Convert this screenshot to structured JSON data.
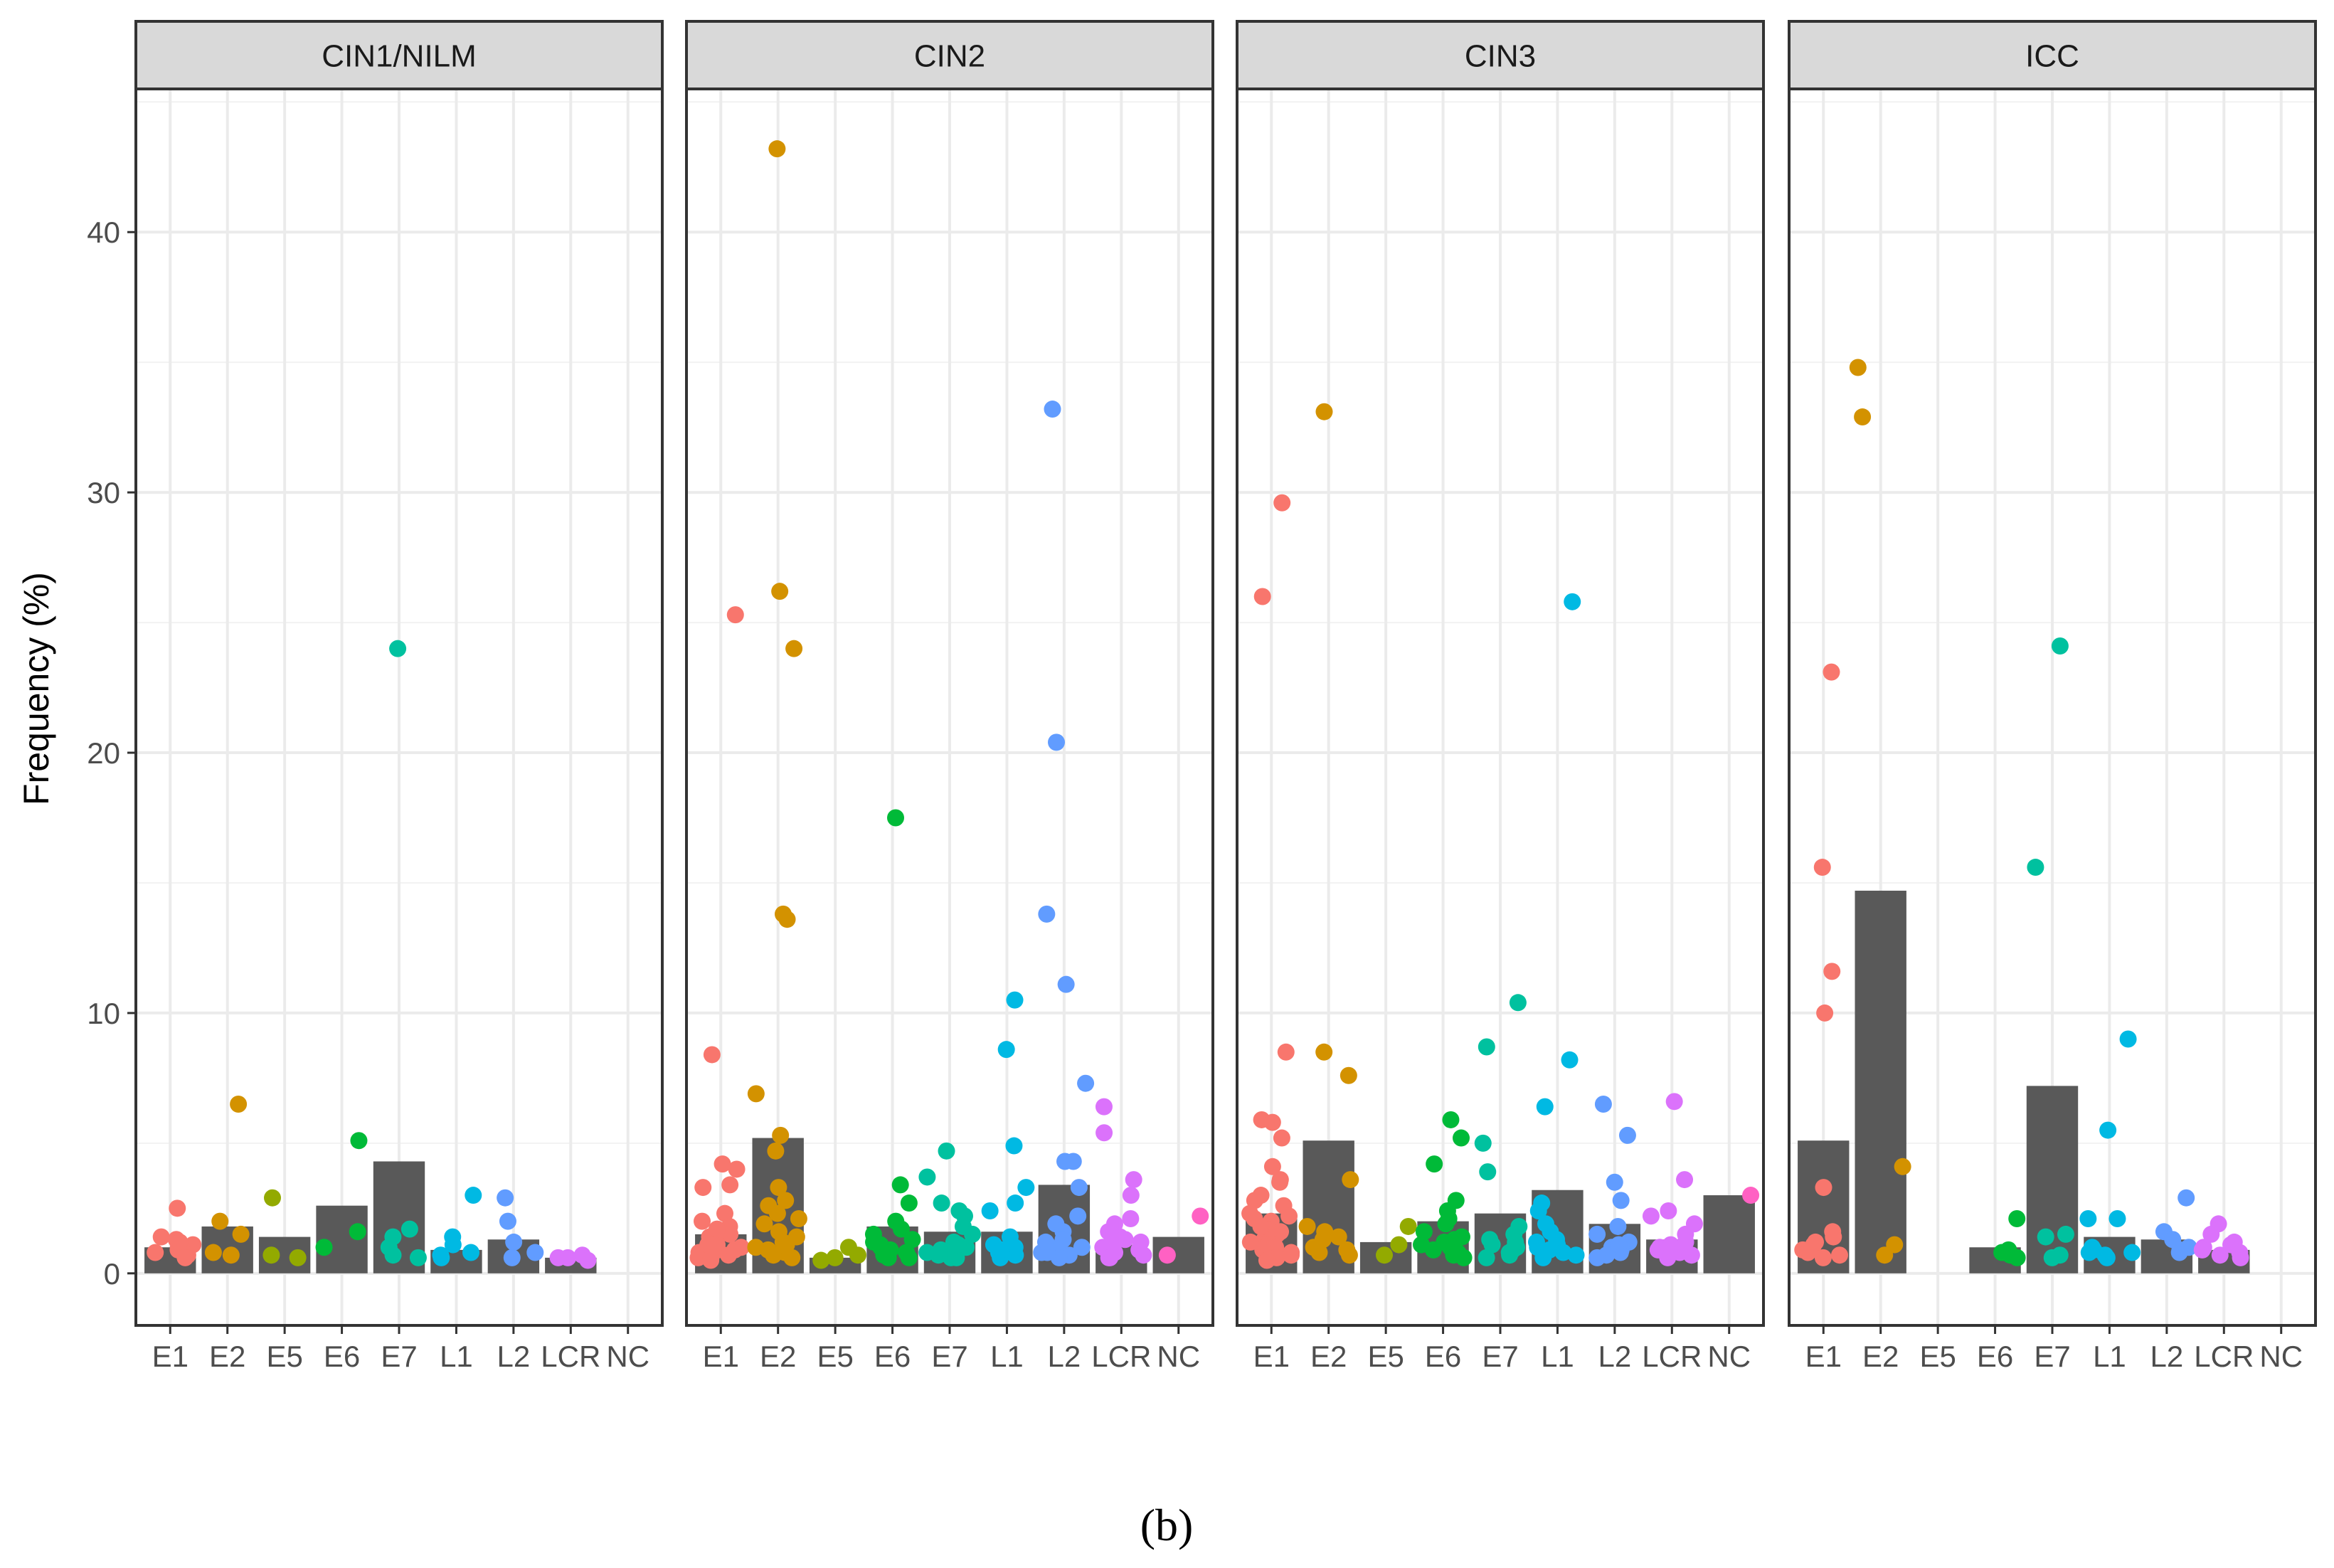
{
  "caption": "(b)",
  "chart_data": {
    "type": "bar",
    "ylabel": "Frequency (%)",
    "xlabel": "",
    "ylim": [
      -2,
      45.5
    ],
    "y_ticks": [
      0,
      10,
      20,
      30,
      40
    ],
    "categories": [
      "E1",
      "E2",
      "E5",
      "E6",
      "E7",
      "L1",
      "L2",
      "LCR",
      "NC"
    ],
    "category_colors": {
      "E1": "#F8766D",
      "E2": "#D39200",
      "E5": "#93AA00",
      "E6": "#00BA38",
      "E7": "#00C19F",
      "L1": "#00B9E3",
      "L2": "#619CFF",
      "LCR": "#DB72FB",
      "NC": "#FF61C3"
    },
    "bar_color": "#595959",
    "grid": true,
    "panels": [
      {
        "title": "CIN1/NILM",
        "bars": [
          1.0,
          1.8,
          1.4,
          2.6,
          4.3,
          0.9,
          1.3,
          0.6,
          0
        ],
        "points": {
          "E1": [
            2.5,
            1.4,
            1.3,
            1.1,
            1.0,
            0.9,
            0.8,
            0.7,
            1.2,
            0.6
          ],
          "E2": [
            6.5,
            2.0,
            1.5,
            0.8,
            0.7
          ],
          "E5": [
            2.9,
            0.7,
            0.6
          ],
          "E6": [
            5.1,
            1.6,
            1.0
          ],
          "E7": [
            24.0,
            1.7,
            1.4,
            1.0,
            0.7,
            0.6
          ],
          "L1": [
            3.0,
            1.4,
            1.1,
            0.8,
            0.6,
            0.7
          ],
          "L2": [
            2.9,
            2.0,
            1.2,
            0.8,
            0.6
          ],
          "LCR": [
            0.7,
            0.6,
            0.6,
            0.5
          ],
          "NC": []
        }
      },
      {
        "title": "CIN2",
        "bars": [
          1.5,
          5.2,
          0.6,
          1.8,
          1.6,
          1.6,
          3.4,
          1.1,
          1.4
        ],
        "points": {
          "E1": [
            25.3,
            8.4,
            4.2,
            4.0,
            3.4,
            3.3,
            2.3,
            2.0,
            1.8,
            1.6,
            1.5,
            1.4,
            1.3,
            1.2,
            1.1,
            1.0,
            0.9,
            0.8,
            0.8,
            0.7,
            0.7,
            0.6,
            0.6,
            0.5,
            1.7,
            1.1,
            0.9
          ],
          "E2": [
            43.2,
            26.2,
            24.0,
            13.8,
            13.6,
            6.9,
            5.3,
            4.7,
            3.3,
            2.8,
            2.6,
            2.3,
            2.1,
            1.9,
            1.6,
            1.4,
            1.2,
            1.0,
            0.9,
            0.8,
            0.7,
            0.6,
            1.1,
            0.9
          ],
          "E5": [
            1.0,
            0.7,
            0.6,
            0.5
          ],
          "E6": [
            17.5,
            3.4,
            2.7,
            2.0,
            1.7,
            1.5,
            1.3,
            1.2,
            1.0,
            0.9,
            0.8,
            0.7,
            0.6,
            1.1,
            0.8,
            0.6
          ],
          "E7": [
            4.7,
            3.7,
            2.7,
            2.4,
            2.2,
            1.8,
            1.5,
            1.2,
            1.0,
            0.9,
            0.8,
            0.7,
            0.6,
            0.6,
            1.1
          ],
          "L1": [
            10.5,
            8.6,
            4.9,
            3.3,
            2.7,
            2.4,
            1.4,
            1.1,
            1.0,
            0.9,
            0.8,
            0.7,
            0.6,
            0.9
          ],
          "L2": [
            33.2,
            20.4,
            13.8,
            11.1,
            7.3,
            4.3,
            4.3,
            3.3,
            2.2,
            1.9,
            1.6,
            1.3,
            1.1,
            1.0,
            0.9,
            0.8,
            0.7,
            0.6,
            1.2,
            0.8
          ],
          "LCR": [
            6.4,
            5.4,
            3.6,
            3.0,
            2.1,
            1.9,
            1.6,
            1.4,
            1.2,
            1.1,
            1.0,
            0.9,
            0.8,
            0.7,
            0.6,
            0.6,
            1.3
          ],
          "NC": [
            2.2,
            0.7
          ]
        }
      },
      {
        "title": "CIN3",
        "bars": [
          2.3,
          5.1,
          1.2,
          2.0,
          2.3,
          3.2,
          1.9,
          1.3,
          3.0
        ],
        "points": {
          "E1": [
            29.6,
            26.0,
            8.5,
            5.9,
            5.8,
            5.2,
            4.1,
            3.6,
            3.5,
            3.0,
            2.8,
            2.6,
            2.3,
            2.1,
            2.0,
            1.9,
            1.7,
            1.6,
            1.5,
            1.4,
            1.3,
            1.2,
            1.1,
            1.0,
            0.9,
            0.8,
            0.7,
            0.6,
            0.5,
            2.2,
            1.8,
            1.2
          ],
          "E2": [
            33.1,
            8.5,
            7.6,
            3.6,
            1.8,
            1.6,
            1.3,
            1.0,
            0.9,
            0.8,
            0.7,
            1.4
          ],
          "E5": [
            1.8,
            1.1,
            0.7
          ],
          "E6": [
            5.9,
            5.2,
            4.2,
            2.8,
            2.4,
            2.1,
            1.9,
            1.6,
            1.4,
            1.3,
            1.1,
            1.0,
            0.9,
            0.8,
            0.7,
            0.6,
            1.2
          ],
          "E7": [
            10.4,
            8.7,
            5.0,
            3.9,
            1.8,
            1.5,
            1.3,
            1.1,
            1.0,
            0.9,
            0.8,
            0.7,
            0.6,
            1.2
          ],
          "L1": [
            25.8,
            8.2,
            6.4,
            2.7,
            2.4,
            1.9,
            1.6,
            1.3,
            1.1,
            1.0,
            0.9,
            0.8,
            0.7,
            0.6,
            1.2
          ],
          "L2": [
            6.5,
            5.3,
            3.5,
            2.8,
            1.8,
            1.5,
            1.2,
            1.0,
            0.9,
            0.8,
            0.7,
            0.6,
            1.1
          ],
          "LCR": [
            6.6,
            3.6,
            2.4,
            2.2,
            1.9,
            1.5,
            1.2,
            1.0,
            0.9,
            0.8,
            0.7,
            0.6,
            1.1
          ],
          "NC": [
            3.0
          ]
        }
      },
      {
        "title": "ICC",
        "bars": [
          5.1,
          14.7,
          0,
          1.0,
          7.2,
          1.4,
          1.3,
          0.9,
          0
        ],
        "points": {
          "E1": [
            23.1,
            15.6,
            11.6,
            10.0,
            3.3,
            1.6,
            1.4,
            1.1,
            1.0,
            0.9,
            0.8,
            0.7,
            0.6,
            1.2
          ],
          "E2": [
            34.8,
            32.9,
            4.1,
            1.1,
            0.7
          ],
          "E5": [],
          "E6": [
            2.1,
            0.9,
            0.8,
            0.7,
            0.6,
            0.8
          ],
          "E7": [
            24.1,
            15.6,
            1.5,
            1.4,
            0.7,
            0.6
          ],
          "L1": [
            9.0,
            5.5,
            2.1,
            2.1,
            1.0,
            0.9,
            0.8,
            0.7,
            0.6,
            0.8
          ],
          "L2": [
            2.9,
            1.6,
            1.3,
            1.0,
            0.9,
            0.8
          ],
          "LCR": [
            1.9,
            1.5,
            1.2,
            1.0,
            0.9,
            0.8,
            0.7,
            0.6,
            1.1
          ],
          "NC": []
        }
      }
    ]
  }
}
